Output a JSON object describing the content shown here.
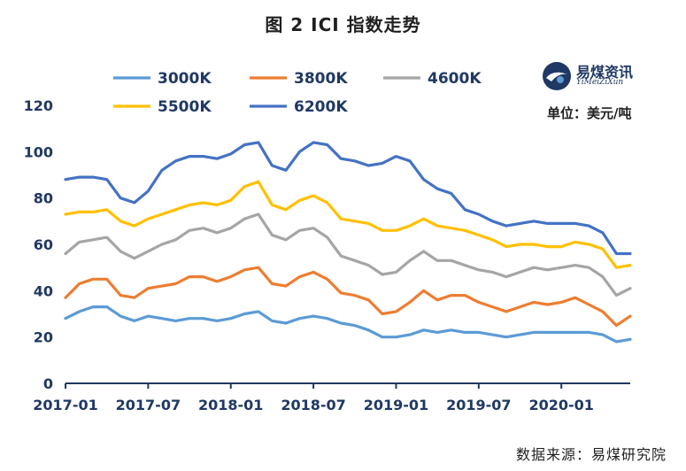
{
  "title": "图 2    ICI 指数走势",
  "unit": "单位：美元/吨",
  "source": "数据来源：易煤研究院",
  "logo": {
    "name": "易煤资讯",
    "sub": "YiMeiZiXun"
  },
  "colors": {
    "axis": "#1f3864",
    "text": "#1f3864"
  },
  "chart_data": {
    "type": "line",
    "title": "图 2    ICI 指数走势",
    "xlabel": "",
    "ylabel": "",
    "ylim": [
      0,
      120
    ],
    "yticks": [
      0,
      20,
      40,
      60,
      80,
      100,
      120
    ],
    "grid": false,
    "legend": "top",
    "xticks": [
      "2017-01",
      "2017-07",
      "2018-01",
      "2018-07",
      "2019-01",
      "2019-07",
      "2020-01"
    ],
    "x": [
      "2017-01",
      "2017-02",
      "2017-03",
      "2017-04",
      "2017-05",
      "2017-06",
      "2017-07",
      "2017-08",
      "2017-09",
      "2017-10",
      "2017-11",
      "2017-12",
      "2018-01",
      "2018-02",
      "2018-03",
      "2018-04",
      "2018-05",
      "2018-06",
      "2018-07",
      "2018-08",
      "2018-09",
      "2018-10",
      "2018-11",
      "2018-12",
      "2019-01",
      "2019-02",
      "2019-03",
      "2019-04",
      "2019-05",
      "2019-06",
      "2019-07",
      "2019-08",
      "2019-09",
      "2019-10",
      "2019-11",
      "2019-12",
      "2020-01",
      "2020-02",
      "2020-03",
      "2020-04",
      "2020-05",
      "2020-06"
    ],
    "series": [
      {
        "name": "3000K",
        "color": "#5b9bd5",
        "values": [
          28,
          31,
          33,
          33,
          29,
          27,
          29,
          28,
          27,
          28,
          28,
          27,
          28,
          30,
          31,
          27,
          26,
          28,
          29,
          28,
          26,
          25,
          23,
          20,
          20,
          21,
          23,
          22,
          23,
          22,
          22,
          21,
          20,
          21,
          22,
          22,
          22,
          22,
          22,
          21,
          18,
          19
        ]
      },
      {
        "name": "3800K",
        "color": "#ed7d31",
        "values": [
          37,
          43,
          45,
          45,
          38,
          37,
          41,
          42,
          43,
          46,
          46,
          44,
          46,
          49,
          50,
          43,
          42,
          46,
          48,
          45,
          39,
          38,
          36,
          30,
          31,
          35,
          40,
          36,
          38,
          38,
          35,
          33,
          31,
          33,
          35,
          34,
          35,
          37,
          34,
          31,
          25,
          29
        ]
      },
      {
        "name": "4600K",
        "color": "#a5a5a5",
        "values": [
          56,
          61,
          62,
          63,
          57,
          54,
          57,
          60,
          62,
          66,
          67,
          65,
          67,
          71,
          73,
          64,
          62,
          66,
          67,
          63,
          55,
          53,
          51,
          47,
          48,
          53,
          57,
          53,
          53,
          51,
          49,
          48,
          46,
          48,
          50,
          49,
          50,
          51,
          50,
          46,
          38,
          41
        ]
      },
      {
        "name": "5500K",
        "color": "#ffc000",
        "values": [
          73,
          74,
          74,
          75,
          70,
          68,
          71,
          73,
          75,
          77,
          78,
          77,
          79,
          85,
          87,
          77,
          75,
          79,
          81,
          78,
          71,
          70,
          69,
          66,
          66,
          68,
          71,
          68,
          67,
          66,
          64,
          62,
          59,
          60,
          60,
          59,
          59,
          61,
          60,
          58,
          50,
          51
        ]
      },
      {
        "name": "6200K",
        "color": "#4472c4",
        "values": [
          88,
          89,
          89,
          88,
          80,
          78,
          83,
          92,
          96,
          98,
          98,
          97,
          99,
          103,
          104,
          94,
          92,
          100,
          104,
          103,
          97,
          96,
          94,
          95,
          98,
          96,
          88,
          84,
          82,
          75,
          73,
          70,
          68,
          69,
          70,
          69,
          69,
          69,
          68,
          65,
          56,
          56
        ]
      }
    ]
  }
}
